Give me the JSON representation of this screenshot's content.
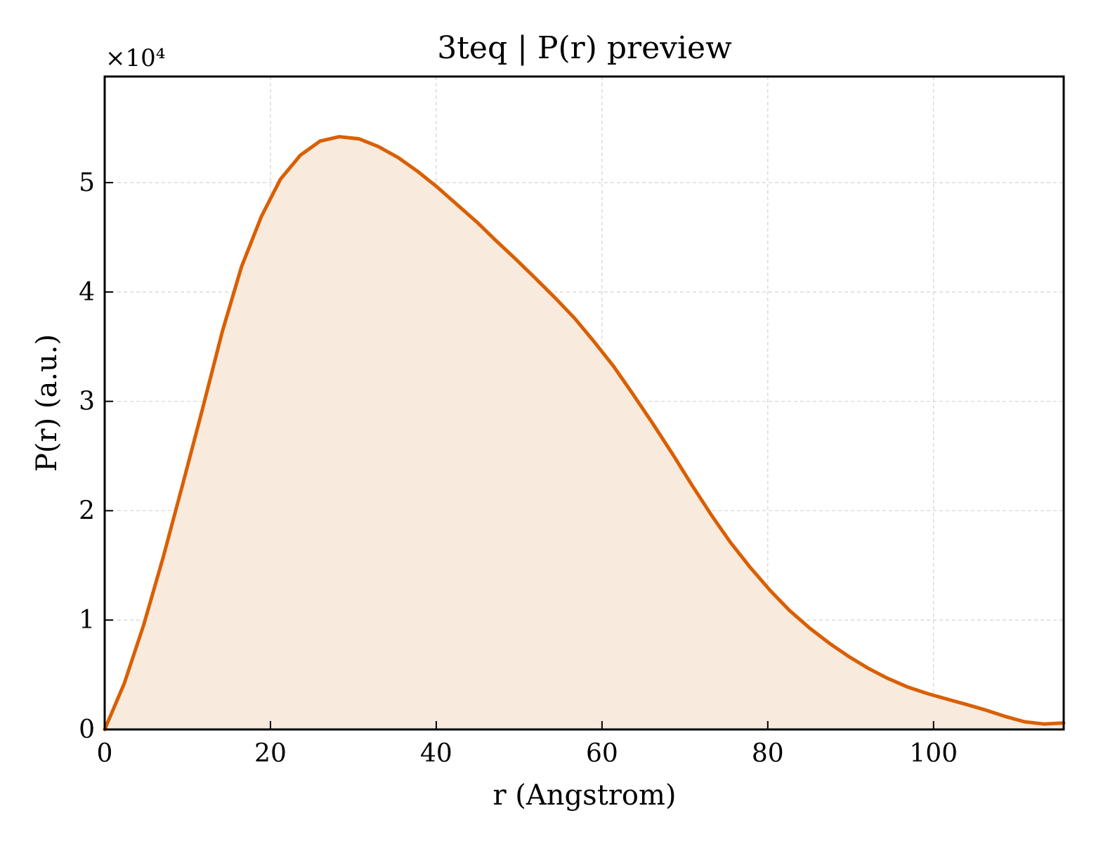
{
  "chart_data": {
    "type": "area",
    "title": "3teq | P(r) preview",
    "xlabel": "r (Angstrom)",
    "ylabel": "P(r) (a.u.)",
    "y_multiplier_text": "×10⁴",
    "y_multiplier": 10000,
    "xlim": [
      0,
      115.7
    ],
    "ylim": [
      0,
      59700
    ],
    "xticks": [
      0,
      20,
      40,
      60,
      80,
      100
    ],
    "xtick_labels": [
      "0",
      "20",
      "40",
      "60",
      "80",
      "100"
    ],
    "yticks": [
      0,
      10000,
      20000,
      30000,
      40000,
      50000
    ],
    "ytick_labels": [
      "0",
      "1",
      "2",
      "3",
      "4",
      "5"
    ],
    "grid": true,
    "colors": {
      "line": "#d95f02",
      "fill": "#f9eade"
    },
    "series": [
      {
        "x": [
          0,
          2.36,
          4.72,
          7.08,
          9.44,
          11.8,
          14.2,
          16.5,
          18.9,
          21.2,
          23.6,
          26.0,
          28.3,
          30.7,
          33.0,
          35.4,
          37.8,
          40.1,
          42.5,
          44.9,
          47.2,
          49.6,
          51.9,
          54.3,
          56.7,
          59.0,
          61.4,
          63.7,
          66.1,
          68.5,
          70.8,
          73.2,
          75.5,
          77.9,
          80.3,
          82.6,
          85.0,
          87.4,
          89.7,
          92.1,
          94.4,
          96.8,
          99.2,
          101.5,
          103.9,
          106.2,
          108.6,
          111.0,
          113.3,
          115.7
        ],
        "y": [
          0,
          4200,
          9600,
          15800,
          22500,
          29300,
          36400,
          42300,
          46900,
          50300,
          52500,
          53800,
          54200,
          54000,
          53300,
          52300,
          51000,
          49600,
          48000,
          46400,
          44700,
          43000,
          41300,
          39500,
          37600,
          35500,
          33200,
          30700,
          28000,
          25200,
          22400,
          19600,
          17100,
          14800,
          12700,
          10900,
          9300,
          7900,
          6700,
          5600,
          4700,
          3900,
          3300,
          2800,
          2300,
          1800,
          1200,
          700,
          500,
          600
        ]
      }
    ]
  }
}
